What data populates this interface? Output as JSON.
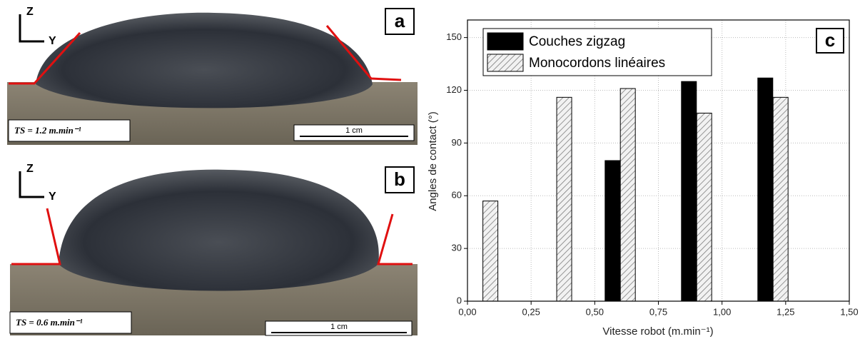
{
  "panels": [
    {
      "letter": "a",
      "axis_z": "Z",
      "axis_y": "Y",
      "speed_label": "TS = 1.2 m.min⁻¹",
      "scale_label": "1 cm"
    },
    {
      "letter": "b",
      "axis_z": "Z",
      "axis_y": "Y",
      "speed_label": "TS = 0.6 m.min⁻¹",
      "scale_label": "1 cm"
    }
  ],
  "chart_data": {
    "type": "bar",
    "panel_letter": "c",
    "x_label": "Vitesse robot (m.min⁻¹)",
    "y_label": "Angles de contact (°)",
    "series": [
      {
        "name": "Couches zigzag",
        "color": "#000000",
        "pattern": "solid",
        "x": [
          0.57,
          0.87,
          1.17
        ],
        "values": [
          80,
          125,
          127
        ]
      },
      {
        "name": "Monocordons linéaires",
        "color": "#d9d9d9",
        "pattern": "hatch",
        "x": [
          0.09,
          0.38,
          0.63,
          0.93,
          1.23
        ],
        "values": [
          57,
          116,
          121,
          107,
          116
        ]
      }
    ],
    "xlim": [
      0,
      1.5
    ],
    "ylim": [
      0,
      160
    ],
    "xticks": [
      {
        "value": 0,
        "label": "0,00"
      },
      {
        "value": 0.25,
        "label": "0,25"
      },
      {
        "value": 0.5,
        "label": "0,50"
      },
      {
        "value": 0.75,
        "label": "0,75"
      },
      {
        "value": 1,
        "label": "1,00"
      },
      {
        "value": 1.25,
        "label": "1,25"
      },
      {
        "value": 1.5,
        "label": "1,50"
      }
    ],
    "yticks": [
      0,
      30,
      60,
      90,
      120,
      150
    ],
    "grid": true,
    "legend": "upper left"
  }
}
